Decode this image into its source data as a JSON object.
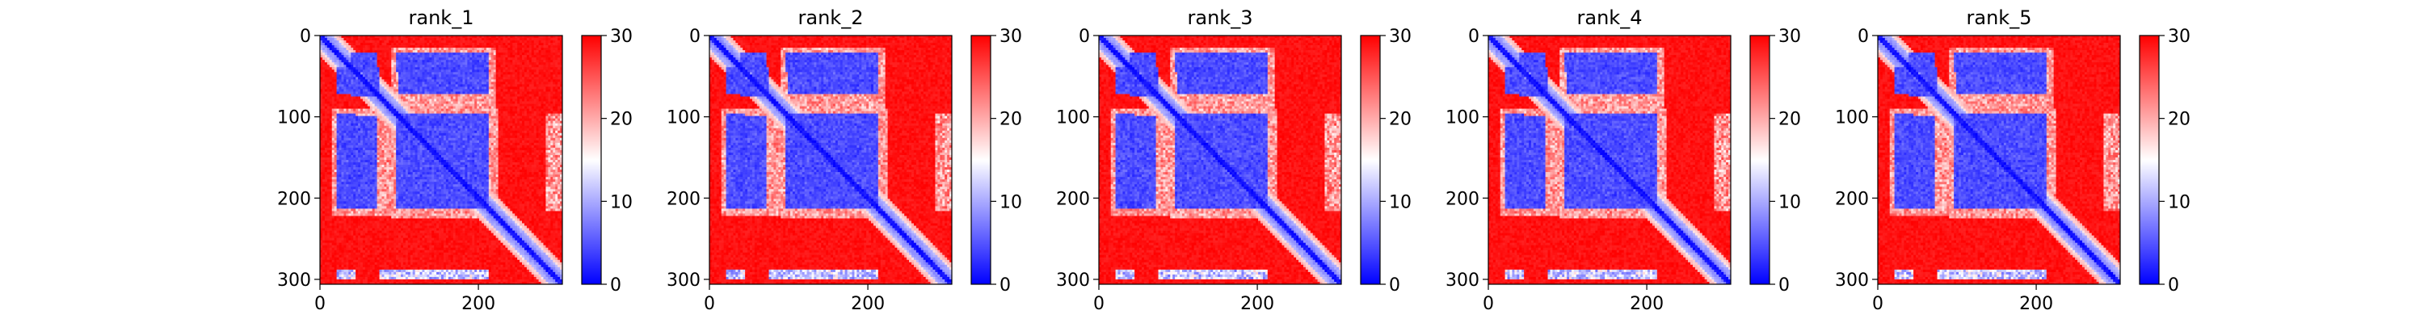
{
  "colors": {
    "low": "#0000ff",
    "mid": "#ffffff",
    "high": "#ff0000",
    "axis": "#000000",
    "background": "#ffffff"
  },
  "chart_data": [
    {
      "type": "heatmap",
      "title": "rank_1",
      "xlim": [
        0,
        306
      ],
      "ylim": [
        306,
        0
      ],
      "xticks": [
        0,
        200
      ],
      "yticks": [
        0,
        100,
        200,
        300
      ],
      "colorbar": {
        "range": [
          0,
          30
        ],
        "ticks": [
          0,
          10,
          20,
          30
        ]
      },
      "values": "predicted aligned error matrix (≈306×306), blue (0) = confident, red (30) = uncertain"
    },
    {
      "type": "heatmap",
      "title": "rank_2",
      "xlim": [
        0,
        306
      ],
      "ylim": [
        306,
        0
      ],
      "xticks": [
        0,
        200
      ],
      "yticks": [
        0,
        100,
        200,
        300
      ],
      "colorbar": {
        "range": [
          0,
          30
        ],
        "ticks": [
          0,
          10,
          20,
          30
        ]
      }
    },
    {
      "type": "heatmap",
      "title": "rank_3",
      "xlim": [
        0,
        306
      ],
      "ylim": [
        306,
        0
      ],
      "xticks": [
        0,
        200
      ],
      "yticks": [
        0,
        100,
        200,
        300
      ],
      "colorbar": {
        "range": [
          0,
          30
        ],
        "ticks": [
          0,
          10,
          20,
          30
        ]
      }
    },
    {
      "type": "heatmap",
      "title": "rank_4",
      "xlim": [
        0,
        306
      ],
      "ylim": [
        306,
        0
      ],
      "xticks": [
        0,
        200
      ],
      "yticks": [
        0,
        100,
        200,
        300
      ],
      "colorbar": {
        "range": [
          0,
          30
        ],
        "ticks": [
          0,
          10,
          20,
          30
        ]
      }
    },
    {
      "type": "heatmap",
      "title": "rank_5",
      "xlim": [
        0,
        306
      ],
      "ylim": [
        306,
        0
      ],
      "xticks": [
        0,
        200
      ],
      "yticks": [
        0,
        100,
        200,
        300
      ],
      "colorbar": {
        "range": [
          0,
          30
        ],
        "ticks": [
          0,
          10,
          20,
          30
        ]
      }
    }
  ]
}
